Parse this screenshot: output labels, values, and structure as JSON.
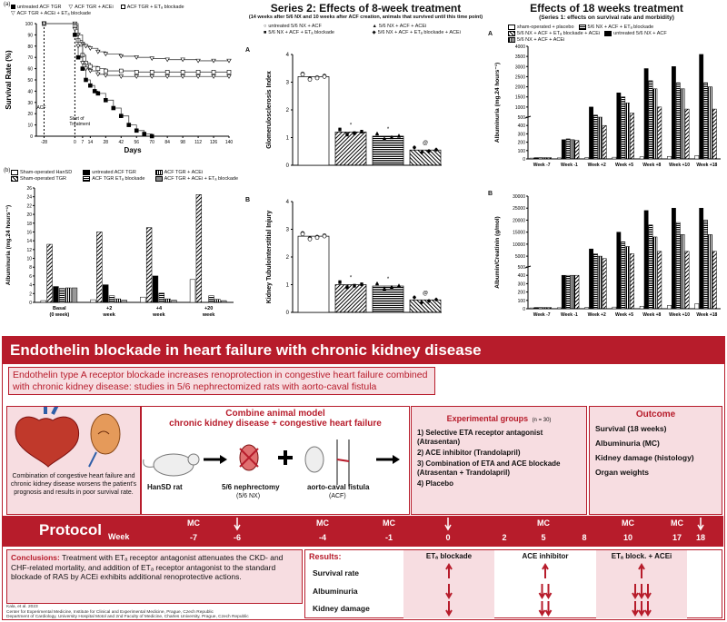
{
  "figA": {
    "label": "(a)",
    "legend": [
      "untreated ACF TGR",
      "ACF TGR + ACEi",
      "ACF TGR + ETₐ blockade",
      "ACF TGR + ACEi + ETₐ blockade"
    ],
    "ylabel": "Survival Rate (%)",
    "xlabel": "Days",
    "acf_label": "ACF",
    "start_label": "Start of\nTreatment",
    "chart_data": {
      "type": "line",
      "x_ticks": [
        -28,
        0,
        7,
        14,
        28,
        42,
        56,
        70,
        84,
        98,
        112,
        126,
        140
      ],
      "y_ticks": [
        0,
        10,
        20,
        30,
        40,
        50,
        60,
        70,
        80,
        90,
        100
      ],
      "xlim": [
        -35,
        140
      ],
      "ylim": [
        0,
        100
      ],
      "series": [
        {
          "name": "untreated ACF TGR",
          "x": [
            -28,
            0,
            3,
            7,
            10,
            14,
            18,
            21,
            28,
            35,
            42,
            49,
            56,
            63,
            70
          ],
          "y": [
            100,
            90,
            70,
            60,
            50,
            45,
            40,
            38,
            32,
            25,
            18,
            10,
            5,
            2,
            0
          ]
        },
        {
          "name": "ACF TGR + ACEi",
          "x": [
            -28,
            0,
            3,
            7,
            10,
            14,
            21,
            28,
            42,
            56,
            70,
            84,
            98,
            112,
            126,
            140
          ],
          "y": [
            100,
            100,
            90,
            82,
            80,
            78,
            75,
            73,
            71,
            70,
            69,
            68,
            68,
            67,
            67,
            67
          ]
        },
        {
          "name": "ACF TGR + ETₐ blockade",
          "x": [
            -28,
            0,
            3,
            7,
            10,
            14,
            21,
            28,
            42,
            56,
            70,
            84,
            98,
            112,
            126,
            140
          ],
          "y": [
            100,
            98,
            85,
            72,
            65,
            62,
            60,
            58,
            58,
            57,
            57,
            57,
            57,
            57,
            57,
            57
          ]
        },
        {
          "name": "ACF TGR + ACEi + ETₐ blockade",
          "x": [
            -28,
            0,
            3,
            7,
            10,
            14,
            21,
            28,
            42,
            56,
            70,
            84,
            98,
            112,
            126,
            140
          ],
          "y": [
            100,
            95,
            80,
            65,
            60,
            58,
            55,
            54,
            53,
            53,
            53,
            53,
            53,
            53,
            53,
            53
          ]
        }
      ]
    }
  },
  "figB": {
    "label": "(b)",
    "legend": [
      "Sham-operated HanSD",
      "untreated ACF TGR",
      "ACF TGR + ACEi",
      "Sham-operated TGR",
      "ACF TGR ETₐ blockade",
      "ACF TGR + ACEi + ETₐ blockade"
    ],
    "ylabel": "Albuminuria (mg.24 hours⁻¹)",
    "chart_data": {
      "type": "bar",
      "categories": [
        "Basal (0 week)",
        "+2 week",
        "+4 week",
        "+20 week"
      ],
      "ylim": [
        0,
        25
      ],
      "y_ticks": [
        0,
        2,
        4,
        6,
        8,
        10,
        12,
        14,
        16,
        18,
        20,
        22,
        24,
        26
      ],
      "series": [
        {
          "name": "Sham-operated HanSD",
          "values": [
            0.4,
            0.6,
            1.2,
            5.2
          ]
        },
        {
          "name": "Sham-operated TGR",
          "values": [
            13.2,
            16.0,
            17.0,
            24.5
          ]
        },
        {
          "name": "untreated ACF TGR",
          "values": [
            3.6,
            4.0,
            6.0,
            0
          ]
        },
        {
          "name": "ACF TGR ETₐ blockade",
          "values": [
            3.2,
            1.5,
            2.1,
            1.5
          ]
        },
        {
          "name": "ACF TGR + ACEi",
          "values": [
            3.3,
            0.8,
            0.8,
            0.7
          ]
        },
        {
          "name": "ACF TGR + ACEi + ETₐ blockade",
          "values": [
            3.3,
            0.5,
            0.5,
            0.4
          ]
        }
      ]
    }
  },
  "series2": {
    "title": "Series 2: Effects of 8-week treatment",
    "subtitle": "(14 weeks after 5/6 NX and 10 weeks after ACF creation, animals that survived until this time point)",
    "legend": [
      "untreated 5/6 NX + ACF",
      "5/6 NX + ACF + ACEi",
      "5/6 NX + ACF + ETₐ blockade",
      "5/6 NX + ACF + ETₐ blockade + ACEi"
    ],
    "panelA": {
      "label": "A",
      "chart_data": {
        "type": "bar",
        "ylabel": "Glomerulosclerosis Index",
        "ylim": [
          0,
          4
        ],
        "y_ticks": [
          0,
          1,
          2,
          3,
          4
        ],
        "categories": [
          "untreated 5/6 NX + ACF",
          "5/6 NX + ACF + ACEi",
          "5/6 NX + ACF + ETₐ blockade",
          "5/6 NX + ACF + ETₐ blockade + ACEi"
        ],
        "values": [
          3.2,
          1.2,
          1.05,
          0.55
        ]
      }
    },
    "panelB": {
      "label": "B",
      "chart_data": {
        "type": "bar",
        "ylabel": "Kidney Tubulointerstitial Injury",
        "ylim": [
          0,
          4
        ],
        "y_ticks": [
          0,
          1,
          2,
          3,
          4
        ],
        "categories": [
          "untreated 5/6 NX + ACF",
          "5/6 NX + ACF + ACEi",
          "5/6 NX + ACF + ETₐ blockade",
          "5/6 NX + ACF + ETₐ blockade + ACEi"
        ],
        "values": [
          2.75,
          1.0,
          0.95,
          0.45
        ]
      }
    }
  },
  "series1": {
    "title": "Effects of 18 weeks treatment",
    "subtitle": "(Series 1: effects on survival rate and morbidity)",
    "legend": [
      "sham-operated + placebo",
      "untreated 5/6 NX + ACF",
      "5/6 NX + ACF + ETₐ blockade",
      "5/6 NX + ACF + ACEi",
      "5/6 NX + ACF + ETₐ blockade + ACEi"
    ],
    "panelA": {
      "label": "A",
      "chart_data": {
        "type": "bar",
        "ylabel": "Albuminuria (mg.24 hours⁻¹)",
        "categories": [
          "Week -7",
          "Week -1",
          "Week +2",
          "Week +5",
          "Week +8",
          "Week +10",
          "Week +18"
        ],
        "y_ticks": [
          0,
          100,
          200,
          300,
          400,
          500,
          1000,
          1500,
          2000,
          2500,
          3000,
          3500,
          4000
        ],
        "series": [
          {
            "name": "sham-operated + placebo",
            "values": [
              10,
              12,
              15,
              20,
              25,
              30,
              40
            ]
          },
          {
            "name": "untreated 5/6 NX + ACF",
            "values": [
              15,
              230,
              1000,
              1700,
              2900,
              3000,
              3600
            ]
          },
          {
            "name": "5/6 NX + ACF + ETₐ blockade",
            "values": [
              15,
              240,
              600,
              1500,
              2300,
              2200,
              2200
            ]
          },
          {
            "name": "5/6 NX + ACF + ACEi",
            "values": [
              15,
              230,
              500,
              1200,
              1900,
              1900,
              2000
            ]
          },
          {
            "name": "5/6 NX + ACF + ETₐ blockade + ACEi",
            "values": [
              15,
              220,
              400,
              700,
              1000,
              900,
              900
            ]
          }
        ]
      }
    },
    "panelB": {
      "label": "B",
      "chart_data": {
        "type": "bar",
        "ylabel": "Albumin/Creatinin (g/mol)",
        "categories": [
          "Week -7",
          "Week -1",
          "Week +2",
          "Week +5",
          "Week +8",
          "Week +10",
          "Week +18"
        ],
        "y_ticks": [
          0,
          100,
          200,
          300,
          400,
          500,
          5000,
          10000,
          15000,
          20000,
          25000,
          30000
        ],
        "series": [
          {
            "name": "sham-operated + placebo",
            "values": [
              10,
              12,
              15,
              20,
              30,
              40,
              60
            ]
          },
          {
            "name": "untreated 5/6 NX + ACF",
            "values": [
              15,
              400,
              8000,
              15000,
              24000,
              25000,
              25000
            ]
          },
          {
            "name": "5/6 NX + ACF + ETₐ blockade",
            "values": [
              15,
              400,
              6000,
              11000,
              18000,
              19000,
              20000
            ]
          },
          {
            "name": "5/6 NX + ACF + ACEi",
            "values": [
              15,
              400,
              5000,
              9000,
              13000,
              14000,
              14000
            ]
          },
          {
            "name": "5/6 NX + ACF + ETₐ blockade + ACEi",
            "values": [
              15,
              400,
              4000,
              6000,
              7000,
              7000,
              7000
            ]
          }
        ]
      }
    }
  },
  "abstract": {
    "title": "Endothelin blockade in heart failure with chronic kidney disease",
    "subtitle": "Endothelin type A receptor blockade increases renoprotection in congestive heart failure combined with chronic kidney disease: studies in 5/6 nephrectomized rats with aorto-caval fistula",
    "intro_text": "Combination of congestive heart failure and chronic kidney disease worsens the patient's prognosis and results in poor survival rate.",
    "model_title_1": "Combine animal model",
    "model_title_2": "chronic kidney disease + congestive heart failure",
    "rat_label": "HanSD rat",
    "nx_label": "5/6 nephrectomy",
    "nx_sub": "(5/6 NX)",
    "acf_label": "aorto-caval fistula",
    "acf_sub": "(ACF)",
    "groups_title": "Experimental groups",
    "groups_n": "(n = 30)",
    "groups": [
      "1) Selective ETA receptor antagonist (Atrasentan)",
      "2) ACE inhibitor (Trandolapril)",
      "3) Combination of ETA and ACE blockade (Atrasentan + Trandolapril)",
      "4) Placebo"
    ],
    "outcome_title": "Outcome",
    "outcomes": [
      "Survival (18 weeks)",
      "Albuminuria (MC)",
      "Kidney damage (histology)",
      "Organ weights"
    ],
    "protocol_label": "Protocol",
    "week_label": "Week",
    "weeks": [
      "-7",
      "-6",
      "-4",
      "-1",
      "0",
      "2",
      "5",
      "8",
      "10",
      "17",
      "18"
    ],
    "mc_weeks": [
      "-7",
      "-4",
      "-1",
      "5",
      "10",
      "17"
    ],
    "conclusions_label": "Conclusions:",
    "conclusions_text": "Treatment with ETₐ receptor antagonist attenuates the CKD- and CHF-related mortality, and addition of ETₐ receptor antagonist to the standard blockade of RAS by ACEi exhibits additional renoprotective actions.",
    "results_label": "Results:",
    "results_cols": [
      "ETₐ blockade",
      "ACE inhibitor",
      "ETₐ block. + ACEi"
    ],
    "results_rows": [
      "Survival rate",
      "Albuminuria",
      "Kidney damage"
    ],
    "citation": "Kala, et al. 2023\nCenter for Experimental Medicine, Institute for Clinical and Experimental Medicine, Prague, Czech Republic\nDepartment of Cardiology, University Hospital Motol and 2nd Faculty of Medicine, Charles University, Prague, Czech Republic"
  }
}
